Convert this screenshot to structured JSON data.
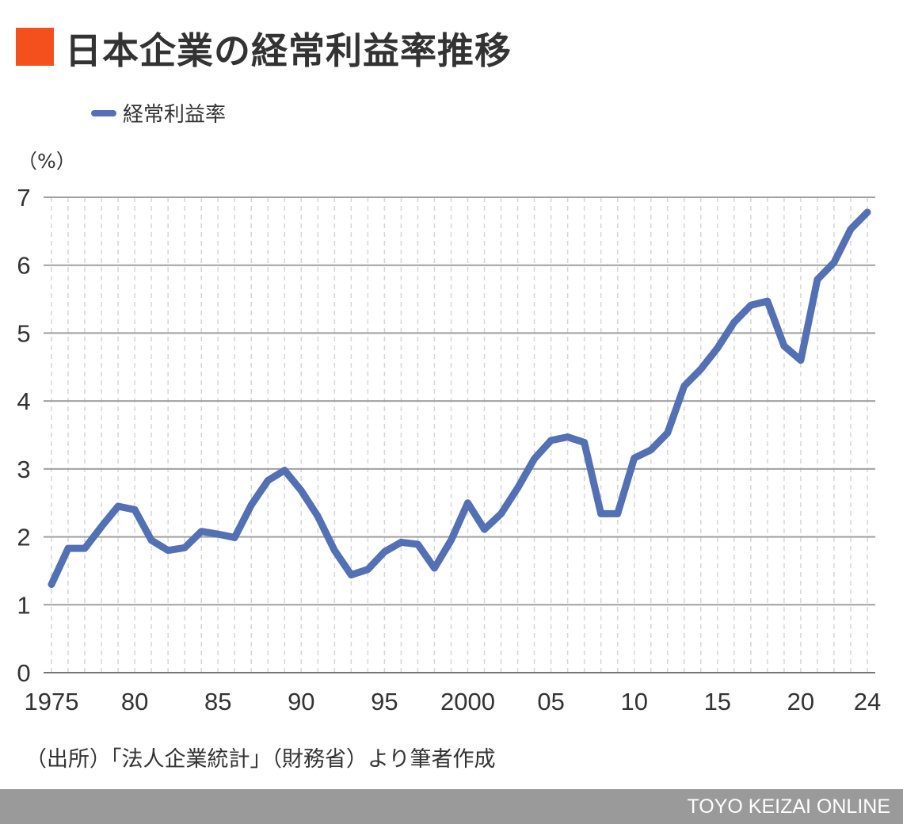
{
  "title": "日本企業の経常利益率推移",
  "footer": "TOYO KEIZAI ONLINE",
  "source": "（出所）「法人企業統計」（財務省）より筆者作成",
  "colors": {
    "accent": "#f4501e",
    "line": "#5470b4",
    "grid": "#999999",
    "footer_bg": "#9a9a9a"
  },
  "chart_data": {
    "type": "line",
    "title": "日本企業の経常利益率推移",
    "ylabel": "（%）",
    "xlabel": "",
    "ylim": [
      0,
      7
    ],
    "yticks": [
      "0",
      "1",
      "2",
      "3",
      "4",
      "5",
      "6",
      "7"
    ],
    "xtick_labels": [
      {
        "year": 1975,
        "label": "1975"
      },
      {
        "year": 1980,
        "label": "80"
      },
      {
        "year": 1985,
        "label": "85"
      },
      {
        "year": 1990,
        "label": "90"
      },
      {
        "year": 1995,
        "label": "95"
      },
      {
        "year": 2000,
        "label": "2000"
      },
      {
        "year": 2005,
        "label": "05"
      },
      {
        "year": 2010,
        "label": "10"
      },
      {
        "year": 2015,
        "label": "15"
      },
      {
        "year": 2020,
        "label": "20"
      },
      {
        "year": 2024,
        "label": "24"
      }
    ],
    "legend": "top-left",
    "grid": true,
    "series": [
      {
        "name": "経常利益率",
        "x": [
          1975,
          1976,
          1977,
          1978,
          1979,
          1980,
          1981,
          1982,
          1983,
          1984,
          1985,
          1986,
          1987,
          1988,
          1989,
          1990,
          1991,
          1992,
          1993,
          1994,
          1995,
          1996,
          1997,
          1998,
          1999,
          2000,
          2001,
          2002,
          2003,
          2004,
          2005,
          2006,
          2007,
          2008,
          2009,
          2010,
          2011,
          2012,
          2013,
          2014,
          2015,
          2016,
          2017,
          2018,
          2019,
          2020,
          2021,
          2022,
          2023,
          2024
        ],
        "values": [
          1.3,
          1.83,
          1.83,
          2.15,
          2.45,
          2.4,
          1.95,
          1.8,
          1.84,
          2.08,
          2.04,
          1.99,
          2.47,
          2.83,
          2.98,
          2.68,
          2.3,
          1.8,
          1.44,
          1.52,
          1.78,
          1.92,
          1.89,
          1.54,
          1.95,
          2.5,
          2.11,
          2.34,
          2.72,
          3.15,
          3.42,
          3.47,
          3.39,
          2.34,
          2.34,
          3.16,
          3.28,
          3.53,
          4.22,
          4.47,
          4.78,
          5.16,
          5.41,
          5.47,
          4.81,
          4.6,
          5.79,
          6.04,
          6.53,
          6.78
        ]
      }
    ]
  }
}
